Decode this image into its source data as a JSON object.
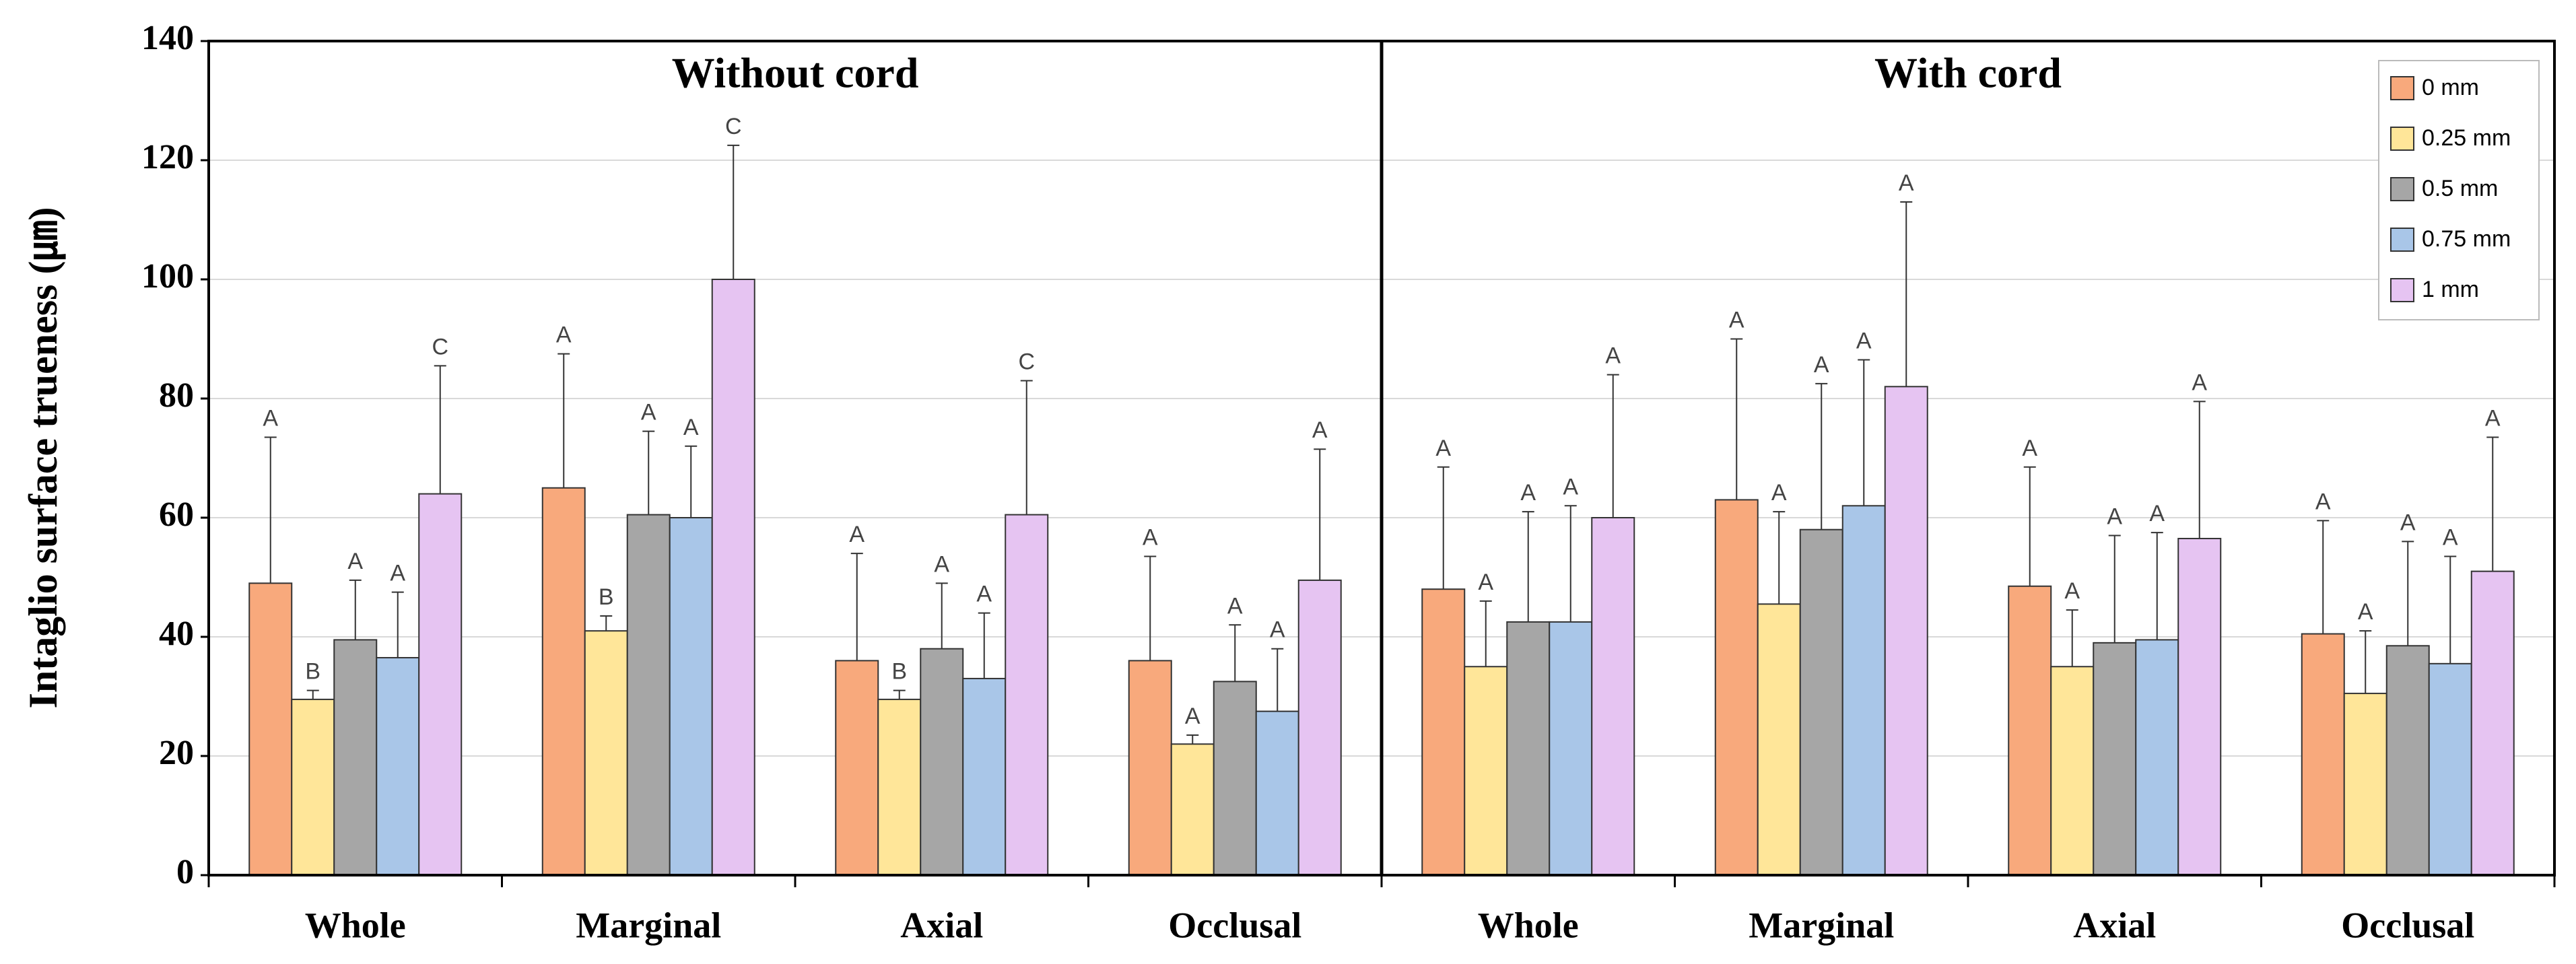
{
  "chart_data": {
    "type": "bar",
    "ylabel": "Intaglio surface trueness (㎛)",
    "panels": [
      {
        "title": "Without cord"
      },
      {
        "title": "With cord"
      }
    ],
    "categories": [
      "Whole",
      "Marginal",
      "Axial",
      "Occlusal",
      "Whole",
      "Marginal",
      "Axial",
      "Occlusal"
    ],
    "ylim": [
      0,
      140
    ],
    "yticks": [
      0,
      20,
      40,
      60,
      80,
      100,
      120,
      140
    ],
    "grid": true,
    "legend": "upper right",
    "series": [
      {
        "name": "0 mm",
        "color": "#f8a97c",
        "values": [
          49,
          65,
          36,
          36,
          48,
          63,
          48.5,
          40.5
        ],
        "errors": [
          24.5,
          22.5,
          18,
          17.5,
          20.5,
          27,
          20,
          19
        ],
        "significance": [
          "A",
          "A",
          "A",
          "A",
          "A",
          "A",
          "A",
          "A"
        ]
      },
      {
        "name": "0.25 mm",
        "color": "#ffe699",
        "values": [
          29.5,
          41,
          29.5,
          22,
          35,
          45.5,
          35,
          30.5
        ],
        "errors": [
          1.5,
          2.5,
          1.5,
          1.5,
          11,
          15.5,
          9.5,
          10.5
        ],
        "significance": [
          "B",
          "B",
          "B",
          "A",
          "A",
          "A",
          "A",
          "A"
        ]
      },
      {
        "name": "0.5 mm",
        "color": "#a6a6a6",
        "values": [
          39.5,
          60.5,
          38,
          32.5,
          42.5,
          58,
          39,
          38.5
        ],
        "errors": [
          10,
          14,
          11,
          9.5,
          18.5,
          24.5,
          18,
          17.5
        ],
        "significance": [
          "A",
          "A",
          "A",
          "A",
          "A",
          "A",
          "A",
          "A"
        ]
      },
      {
        "name": "0.75 mm",
        "color": "#a9c6e8",
        "values": [
          36.5,
          60,
          33,
          27.5,
          42.5,
          62,
          39.5,
          35.5
        ],
        "errors": [
          11,
          12,
          11,
          10.5,
          19.5,
          24.5,
          18,
          18
        ],
        "significance": [
          "A",
          "A",
          "A",
          "A",
          "A",
          "A",
          "A",
          "A"
        ]
      },
      {
        "name": "1 mm",
        "color": "#e6c4f2",
        "values": [
          64,
          100,
          60.5,
          49.5,
          60,
          82,
          56.5,
          51
        ],
        "errors": [
          21.5,
          22.5,
          22.5,
          22,
          24,
          31,
          23,
          22.5
        ],
        "significance": [
          "C",
          "C",
          "C",
          "A",
          "A",
          "A",
          "A",
          "A"
        ]
      }
    ]
  }
}
